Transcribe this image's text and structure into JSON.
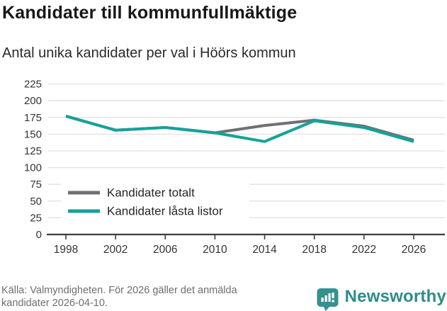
{
  "header": {
    "title": "Kandidater till kommunfullmäktige",
    "subtitle": "Antal unika kandidater per val i Höörs kommun"
  },
  "chart_data": {
    "type": "line",
    "x": [
      1998,
      2002,
      2006,
      2010,
      2014,
      2018,
      2022,
      2026
    ],
    "series": [
      {
        "name": "Kandidater totalt",
        "color": "#707074",
        "values": [
          177,
          156,
          160,
          152,
          163,
          171,
          162,
          141
        ]
      },
      {
        "name": "Kandidater låsta listor",
        "color": "#14a29a",
        "values": [
          177,
          156,
          160,
          152,
          139,
          170,
          160,
          139
        ]
      }
    ],
    "title": "Kandidater till kommunfullmäktige",
    "subtitle": "Antal unika kandidater per val i Höörs kommun",
    "xlabel": "",
    "ylabel": "",
    "ylim": [
      0,
      225
    ],
    "yticks": [
      0,
      25,
      50,
      75,
      100,
      125,
      150,
      175,
      200,
      225
    ],
    "grid": "horizontal-only",
    "legend_position": "inside-bottom-left"
  },
  "footer": {
    "source_lines": [
      "Källa: Valmyndigheten. För 2026 gäller det anmälda",
      "kandidater 2026-04-10."
    ],
    "brand": "Newsworthy"
  },
  "colors": {
    "accent_teal": "#14a29a",
    "series_gray": "#707074",
    "grid": "#e1e1e1",
    "axis": "#3c3c3c",
    "tick_text": "#333333",
    "legend_text": "#262626",
    "logo_teal": "#35918d",
    "footer_text": "#6e6e6e"
  }
}
